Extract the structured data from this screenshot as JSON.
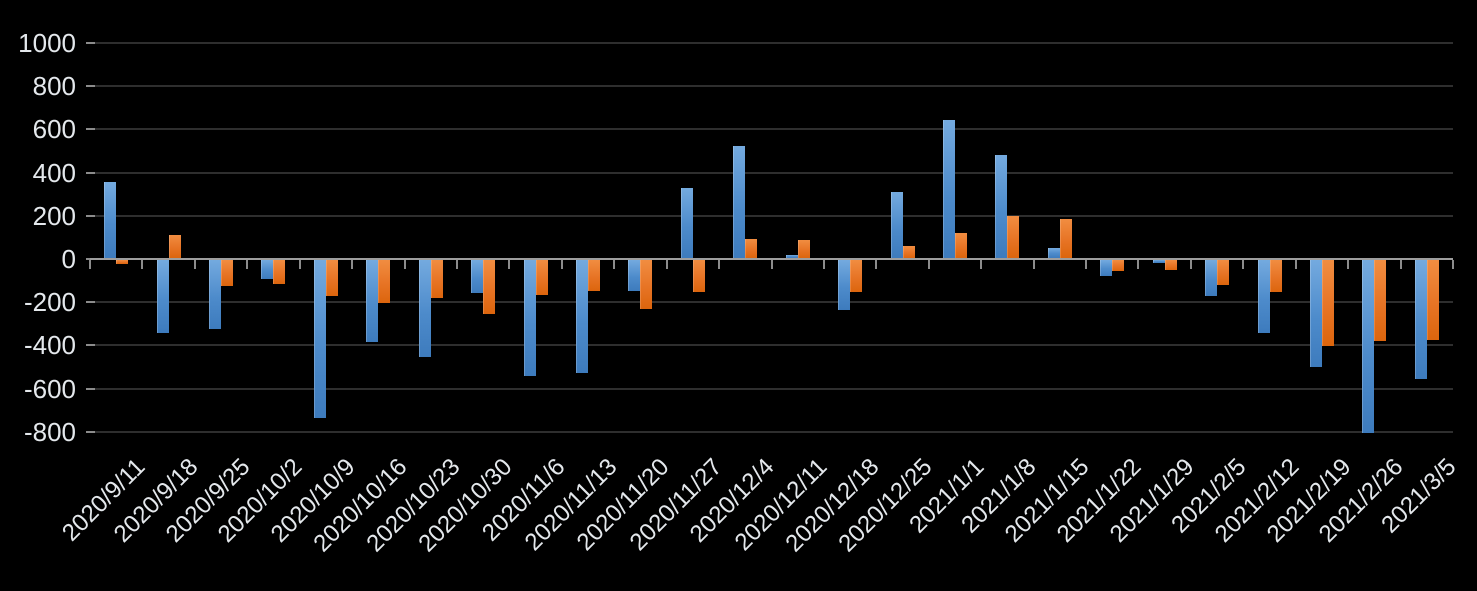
{
  "chart_data": {
    "type": "bar",
    "title": "",
    "legend": "none",
    "grid": true,
    "background_color": "#000000",
    "text_color": "#e4e8ec",
    "axis_line_color": "#9e9e9e",
    "gridline_color": "#2e2e2e",
    "categories": [
      "2020/9/11",
      "2020/9/18",
      "2020/9/25",
      "2020/10/2",
      "2020/10/9",
      "2020/10/16",
      "2020/10/23",
      "2020/10/30",
      "2020/11/6",
      "2020/11/13",
      "2020/11/20",
      "2020/11/27",
      "2020/12/4",
      "2020/12/11",
      "2020/12/18",
      "2020/12/25",
      "2021/1/1",
      "2021/1/8",
      "2021/1/15",
      "2021/1/22",
      "2021/1/29",
      "2021/2/5",
      "2021/2/12",
      "2021/2/19",
      "2021/2/26",
      "2021/3/5"
    ],
    "series": [
      {
        "name": "series-blue",
        "color": "#5593d0",
        "color_gradient_top": "#74aadf",
        "color_gradient_bottom": "#3d7bbd",
        "values": [
          350,
          -340,
          -320,
          -90,
          -730,
          -380,
          -450,
          -155,
          -535,
          -525,
          -145,
          325,
          520,
          15,
          -230,
          305,
          640,
          475,
          45,
          -75,
          -15,
          -165,
          -340,
          -495,
          -800,
          -550
        ]
      },
      {
        "name": "series-orange",
        "color": "#e87425",
        "color_gradient_top": "#f18d41",
        "color_gradient_bottom": "#dc650d",
        "values": [
          -20,
          105,
          -120,
          -110,
          -165,
          -200,
          -175,
          -250,
          -160,
          -145,
          -225,
          -150,
          90,
          85,
          -150,
          55,
          115,
          195,
          180,
          -50,
          -45,
          -115,
          -150,
          -400,
          -375,
          -370
        ]
      }
    ],
    "y_axis": {
      "min": -800,
      "max": 1000,
      "step": 200,
      "tick_labels": [
        "1000",
        "800",
        "600",
        "400",
        "200",
        "0",
        "-200",
        "-400",
        "-600",
        "-800"
      ]
    },
    "x_axis": {
      "label_rotation_deg": 45
    }
  }
}
